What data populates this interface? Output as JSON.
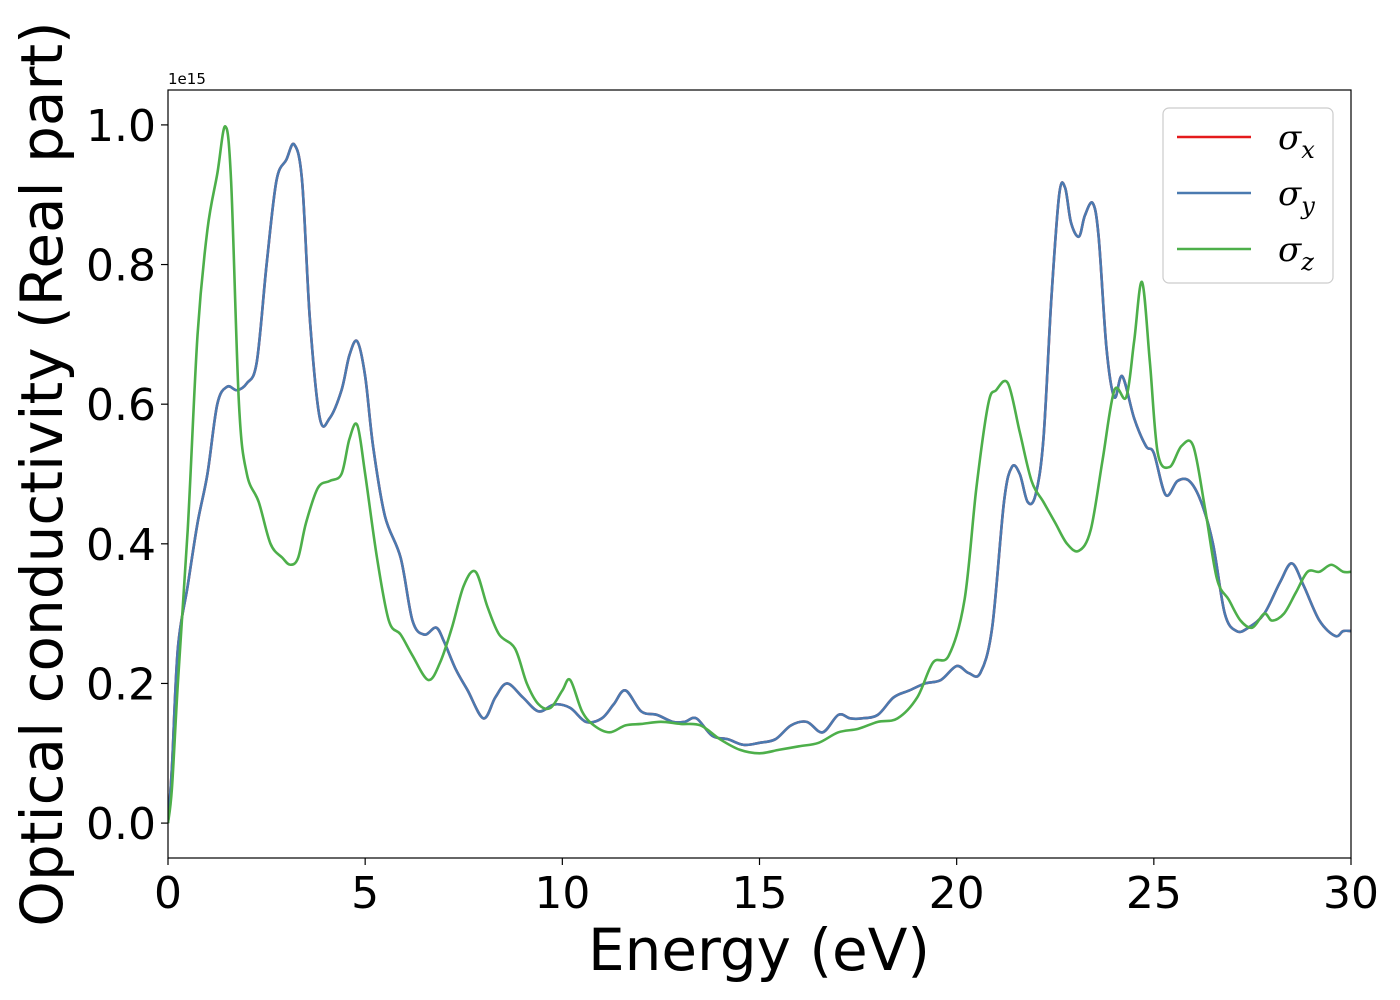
{
  "chart_data": {
    "type": "line",
    "title": "",
    "xlabel": "Energy (eV)",
    "ylabel": "Optical conductivity (Real part)",
    "y_offset_label": "1e15",
    "xlim": [
      0,
      30
    ],
    "ylim": [
      -0.05,
      1.05
    ],
    "xticks": [
      0,
      5,
      10,
      15,
      20,
      25,
      30
    ],
    "xtick_labels": [
      "0",
      "5",
      "10",
      "15",
      "20",
      "25",
      "30"
    ],
    "yticks": [
      0.0,
      0.2,
      0.4,
      0.6,
      0.8,
      1.0
    ],
    "ytick_labels": [
      "0.0",
      "0.2",
      "0.4",
      "0.6",
      "0.8",
      "1.0"
    ],
    "grid": false,
    "legend_position": "top-right",
    "series": [
      {
        "name": "σx",
        "legend_base": "σ",
        "legend_sub": "x",
        "color": "#e41a1c",
        "x": [
          0,
          0.1,
          0.25,
          0.5,
          0.75,
          1.0,
          1.25,
          1.5,
          1.75,
          2.0,
          2.25,
          2.5,
          2.75,
          3.0,
          3.2,
          3.4,
          3.6,
          3.85,
          4.1,
          4.4,
          4.6,
          4.8,
          5.0,
          5.2,
          5.5,
          5.9,
          6.2,
          6.5,
          6.8,
          7.0,
          7.3,
          7.6,
          8.0,
          8.3,
          8.6,
          9.0,
          9.4,
          9.8,
          10.2,
          10.6,
          11.0,
          11.3,
          11.6,
          12.0,
          12.4,
          12.8,
          13.1,
          13.4,
          13.8,
          14.2,
          14.6,
          15.0,
          15.4,
          15.8,
          16.2,
          16.6,
          17.0,
          17.3,
          17.6,
          18.0,
          18.4,
          18.8,
          19.2,
          19.6,
          20.0,
          20.3,
          20.6,
          20.9,
          21.2,
          21.4,
          21.6,
          21.8,
          22.0,
          22.2,
          22.4,
          22.6,
          22.75,
          22.9,
          23.1,
          23.25,
          23.45,
          23.6,
          23.8,
          24.0,
          24.2,
          24.5,
          24.8,
          25.0,
          25.3,
          25.6,
          25.9,
          26.2,
          26.5,
          26.8,
          27.1,
          27.4,
          27.8,
          28.2,
          28.5,
          28.8,
          29.2,
          29.6,
          29.8,
          30.0
        ],
        "values": [
          0.0,
          0.08,
          0.25,
          0.34,
          0.43,
          0.5,
          0.6,
          0.625,
          0.62,
          0.63,
          0.66,
          0.8,
          0.92,
          0.95,
          0.972,
          0.92,
          0.72,
          0.58,
          0.58,
          0.62,
          0.67,
          0.69,
          0.64,
          0.54,
          0.44,
          0.38,
          0.29,
          0.27,
          0.28,
          0.26,
          0.22,
          0.19,
          0.15,
          0.18,
          0.2,
          0.18,
          0.16,
          0.17,
          0.165,
          0.145,
          0.15,
          0.17,
          0.19,
          0.16,
          0.155,
          0.145,
          0.145,
          0.15,
          0.125,
          0.12,
          0.112,
          0.115,
          0.12,
          0.14,
          0.145,
          0.13,
          0.155,
          0.15,
          0.15,
          0.155,
          0.18,
          0.19,
          0.2,
          0.205,
          0.225,
          0.215,
          0.215,
          0.28,
          0.46,
          0.51,
          0.5,
          0.46,
          0.47,
          0.55,
          0.75,
          0.9,
          0.91,
          0.86,
          0.84,
          0.87,
          0.888,
          0.84,
          0.68,
          0.61,
          0.64,
          0.58,
          0.54,
          0.53,
          0.47,
          0.49,
          0.49,
          0.46,
          0.4,
          0.3,
          0.275,
          0.28,
          0.3,
          0.345,
          0.372,
          0.34,
          0.29,
          0.268,
          0.275,
          0.275
        ]
      },
      {
        "name": "σy",
        "legend_base": "σ",
        "legend_sub": "y",
        "color": "#4a7ab0",
        "x": [
          0,
          0.1,
          0.25,
          0.5,
          0.75,
          1.0,
          1.25,
          1.5,
          1.75,
          2.0,
          2.25,
          2.5,
          2.75,
          3.0,
          3.2,
          3.4,
          3.6,
          3.85,
          4.1,
          4.4,
          4.6,
          4.8,
          5.0,
          5.2,
          5.5,
          5.9,
          6.2,
          6.5,
          6.8,
          7.0,
          7.3,
          7.6,
          8.0,
          8.3,
          8.6,
          9.0,
          9.4,
          9.8,
          10.2,
          10.6,
          11.0,
          11.3,
          11.6,
          12.0,
          12.4,
          12.8,
          13.1,
          13.4,
          13.8,
          14.2,
          14.6,
          15.0,
          15.4,
          15.8,
          16.2,
          16.6,
          17.0,
          17.3,
          17.6,
          18.0,
          18.4,
          18.8,
          19.2,
          19.6,
          20.0,
          20.3,
          20.6,
          20.9,
          21.2,
          21.4,
          21.6,
          21.8,
          22.0,
          22.2,
          22.4,
          22.6,
          22.75,
          22.9,
          23.1,
          23.25,
          23.45,
          23.6,
          23.8,
          24.0,
          24.2,
          24.5,
          24.8,
          25.0,
          25.3,
          25.6,
          25.9,
          26.2,
          26.5,
          26.8,
          27.1,
          27.4,
          27.8,
          28.2,
          28.5,
          28.8,
          29.2,
          29.6,
          29.8,
          30.0
        ],
        "values": [
          0.0,
          0.08,
          0.25,
          0.34,
          0.43,
          0.5,
          0.6,
          0.625,
          0.62,
          0.63,
          0.66,
          0.8,
          0.92,
          0.95,
          0.972,
          0.92,
          0.72,
          0.58,
          0.58,
          0.62,
          0.67,
          0.69,
          0.64,
          0.54,
          0.44,
          0.38,
          0.29,
          0.27,
          0.28,
          0.26,
          0.22,
          0.19,
          0.15,
          0.18,
          0.2,
          0.18,
          0.16,
          0.17,
          0.165,
          0.145,
          0.15,
          0.17,
          0.19,
          0.16,
          0.155,
          0.145,
          0.145,
          0.15,
          0.125,
          0.12,
          0.112,
          0.115,
          0.12,
          0.14,
          0.145,
          0.13,
          0.155,
          0.15,
          0.15,
          0.155,
          0.18,
          0.19,
          0.2,
          0.205,
          0.225,
          0.215,
          0.215,
          0.28,
          0.46,
          0.51,
          0.5,
          0.46,
          0.47,
          0.55,
          0.75,
          0.9,
          0.91,
          0.86,
          0.84,
          0.87,
          0.888,
          0.84,
          0.68,
          0.61,
          0.64,
          0.58,
          0.54,
          0.53,
          0.47,
          0.49,
          0.49,
          0.46,
          0.4,
          0.3,
          0.275,
          0.28,
          0.3,
          0.345,
          0.372,
          0.34,
          0.29,
          0.268,
          0.275,
          0.275
        ]
      },
      {
        "name": "σz",
        "legend_base": "σ",
        "legend_sub": "z",
        "color": "#4daf4a",
        "x": [
          0,
          0.1,
          0.25,
          0.5,
          0.75,
          1.0,
          1.25,
          1.45,
          1.6,
          1.8,
          2.0,
          2.3,
          2.6,
          2.9,
          3.1,
          3.3,
          3.5,
          3.8,
          4.1,
          4.4,
          4.6,
          4.8,
          5.0,
          5.3,
          5.6,
          5.9,
          6.2,
          6.6,
          6.9,
          7.2,
          7.5,
          7.8,
          8.1,
          8.4,
          8.8,
          9.1,
          9.4,
          9.7,
          10.0,
          10.2,
          10.5,
          10.8,
          11.2,
          11.6,
          12.0,
          12.5,
          13.0,
          13.5,
          14.0,
          14.5,
          15.0,
          15.5,
          16.0,
          16.5,
          17.0,
          17.5,
          18.0,
          18.5,
          19.0,
          19.4,
          19.8,
          20.2,
          20.5,
          20.8,
          21.0,
          21.3,
          21.6,
          21.9,
          22.2,
          22.5,
          22.8,
          23.1,
          23.4,
          23.7,
          24.0,
          24.3,
          24.5,
          24.7,
          24.9,
          25.1,
          25.4,
          25.7,
          26.0,
          26.3,
          26.6,
          26.9,
          27.2,
          27.5,
          27.8,
          28.0,
          28.3,
          28.6,
          28.9,
          29.2,
          29.5,
          29.8,
          30.0
        ],
        "values": [
          0.0,
          0.05,
          0.2,
          0.42,
          0.7,
          0.85,
          0.93,
          0.998,
          0.92,
          0.6,
          0.5,
          0.46,
          0.4,
          0.38,
          0.37,
          0.38,
          0.43,
          0.48,
          0.49,
          0.5,
          0.55,
          0.57,
          0.5,
          0.38,
          0.29,
          0.27,
          0.24,
          0.205,
          0.23,
          0.28,
          0.34,
          0.36,
          0.31,
          0.27,
          0.25,
          0.2,
          0.17,
          0.165,
          0.19,
          0.205,
          0.16,
          0.14,
          0.13,
          0.14,
          0.142,
          0.145,
          0.142,
          0.14,
          0.12,
          0.105,
          0.1,
          0.105,
          0.11,
          0.115,
          0.13,
          0.135,
          0.145,
          0.15,
          0.18,
          0.23,
          0.24,
          0.32,
          0.48,
          0.6,
          0.62,
          0.63,
          0.56,
          0.49,
          0.46,
          0.43,
          0.4,
          0.39,
          0.42,
          0.52,
          0.62,
          0.61,
          0.69,
          0.775,
          0.66,
          0.53,
          0.51,
          0.54,
          0.54,
          0.45,
          0.35,
          0.32,
          0.29,
          0.28,
          0.3,
          0.29,
          0.3,
          0.33,
          0.36,
          0.36,
          0.37,
          0.36,
          0.36
        ]
      }
    ]
  }
}
